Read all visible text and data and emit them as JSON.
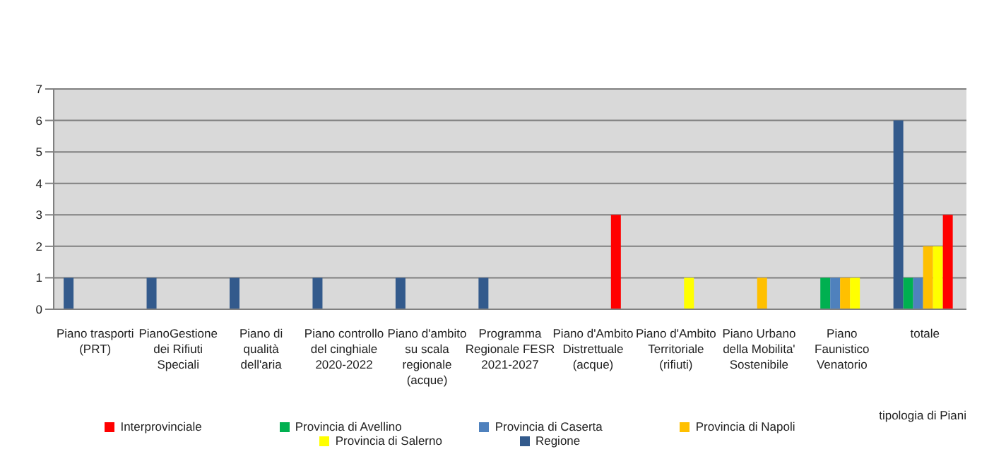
{
  "chart_data": {
    "type": "bar",
    "xlabel": "tipologia di Piani",
    "categories": [
      "Piano trasporti (PRT)",
      "PianoGestione dei Rifiuti Speciali",
      "Piano di qualità dell'aria",
      "Piano controllo del cinghiale 2020-2022",
      "Piano d'ambito su scala regionale (acque)",
      "Programma Regionale FESR 2021-2027",
      "Piano d'Ambito Distrettuale (acque)",
      "Piano d'Ambito Territoriale (rifiuti)",
      "Piano Urbano della Mobilita' Sostenibile",
      "Piano Faunistico Venatorio",
      "totale"
    ],
    "series": [
      {
        "name": "Regione",
        "color": "#335a8c",
        "values": [
          1,
          1,
          1,
          1,
          1,
          1,
          null,
          null,
          null,
          null,
          6
        ]
      },
      {
        "name": "Provincia di Avellino",
        "color": "#00b050",
        "values": [
          null,
          null,
          null,
          null,
          null,
          null,
          null,
          null,
          null,
          1,
          1
        ]
      },
      {
        "name": "Provincia di Caserta",
        "color": "#4f81bd",
        "values": [
          null,
          null,
          null,
          null,
          null,
          null,
          null,
          null,
          null,
          1,
          1
        ]
      },
      {
        "name": "Provincia di Napoli",
        "color": "#ffc000",
        "values": [
          null,
          null,
          null,
          null,
          null,
          null,
          null,
          null,
          1,
          1,
          2
        ]
      },
      {
        "name": "Provincia di Salerno",
        "color": "#ffff00",
        "values": [
          null,
          null,
          null,
          null,
          null,
          null,
          null,
          1,
          null,
          1,
          2
        ]
      },
      {
        "name": "Interprovinciale",
        "color": "#ff0000",
        "values": [
          null,
          null,
          null,
          null,
          null,
          null,
          3,
          null,
          null,
          null,
          3
        ]
      }
    ],
    "ylim": [
      0,
      7
    ],
    "yticks": [
      0,
      1,
      2,
      3,
      4,
      5,
      6,
      7
    ],
    "grid": "y",
    "legend": "bottom"
  }
}
